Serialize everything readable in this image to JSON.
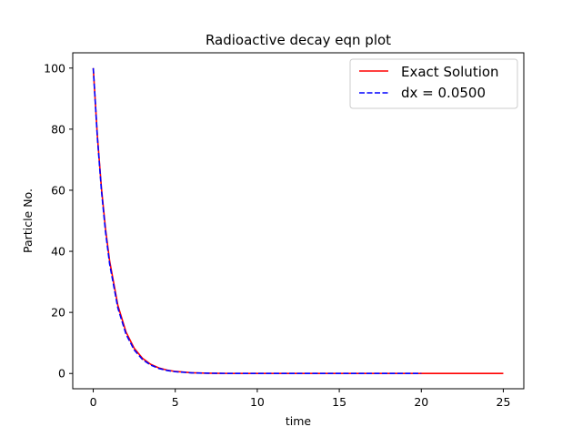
{
  "chart_data": {
    "type": "line",
    "title": "Radioactive decay eqn plot",
    "xlabel": "time",
    "ylabel": "Particle No.",
    "xlim": [
      -1.25,
      26.25
    ],
    "ylim": [
      -5,
      105
    ],
    "xticks": [
      0,
      5,
      10,
      15,
      20,
      25
    ],
    "yticks": [
      0,
      20,
      40,
      60,
      80,
      100
    ],
    "grid": false,
    "legend_position": "top-right",
    "series": [
      {
        "name": "Exact Solution",
        "color": "#ff0000",
        "style": "solid",
        "x": [
          0,
          0.25,
          0.5,
          0.75,
          1,
          1.5,
          2,
          2.5,
          3,
          3.5,
          4,
          4.5,
          5,
          6,
          7,
          8,
          9,
          10,
          12,
          14,
          16,
          18,
          20,
          22,
          25
        ],
        "y": [
          100,
          77.9,
          60.65,
          47.24,
          36.79,
          22.31,
          13.53,
          8.21,
          4.98,
          3.02,
          1.83,
          1.11,
          0.67,
          0.25,
          0.09,
          0.03,
          0.01,
          0.0,
          0.0,
          0.0,
          0.0,
          0.0,
          0.0,
          0.0,
          0.0
        ]
      },
      {
        "name": "dx = 0.0500",
        "color": "#0000ff",
        "style": "dashed",
        "x": [
          0,
          0.25,
          0.5,
          0.75,
          1,
          1.5,
          2,
          2.5,
          3,
          3.5,
          4,
          4.5,
          5,
          6,
          7,
          8,
          9,
          10,
          12,
          14,
          16,
          18,
          20
        ],
        "y": [
          100,
          77.38,
          59.87,
          46.33,
          35.85,
          21.46,
          12.85,
          7.69,
          4.6,
          2.76,
          1.65,
          0.99,
          0.59,
          0.21,
          0.08,
          0.03,
          0.01,
          0.0,
          0.0,
          0.0,
          0.0,
          0.0,
          0.0
        ]
      }
    ]
  }
}
